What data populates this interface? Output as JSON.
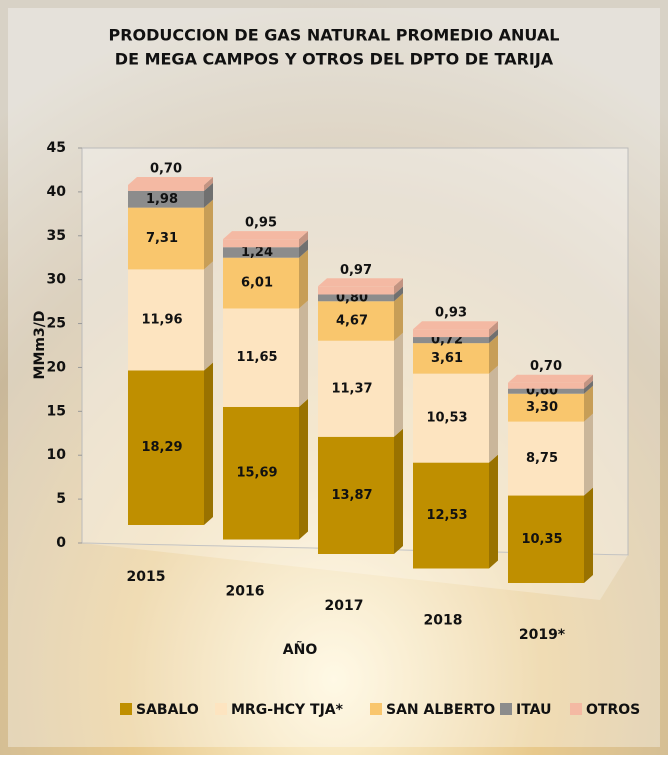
{
  "chart_data": {
    "type": "bar3d-stacked",
    "title": [
      "PRODUCCION DE GAS NATURAL PROMEDIO ANUAL",
      "DE MEGA CAMPOS Y OTROS DEL DPTO DE TARIJA"
    ],
    "y_label": "MMm3/D",
    "x_label": "AÑO",
    "categories": [
      "2015",
      "2016",
      "2017",
      "2018",
      "2019*"
    ],
    "series": [
      {
        "name": "SABALO",
        "color": "#bf8f00",
        "values": [
          18.29,
          15.69,
          13.87,
          12.53,
          10.35
        ],
        "value_labels": [
          "18,29",
          "15,69",
          "13,87",
          "12,53",
          "10,35"
        ]
      },
      {
        "name": "MRG-HCY TJA*",
        "color": "#fde4c0",
        "values": [
          11.96,
          11.65,
          11.37,
          10.53,
          8.75
        ],
        "value_labels": [
          "11,96",
          "11,65",
          "11,37",
          "10,53",
          "8,75"
        ]
      },
      {
        "name": "SAN ALBERTO",
        "color": "#f9c66d",
        "values": [
          7.31,
          6.01,
          4.67,
          3.61,
          3.3
        ],
        "value_labels": [
          "7,31",
          "6,01",
          "4,67",
          "3,61",
          "3,30"
        ]
      },
      {
        "name": "ITAU",
        "color": "#8c8c8c",
        "values": [
          1.98,
          1.24,
          0.8,
          0.72,
          0.6
        ],
        "value_labels": [
          "1,98",
          "1,24",
          "0,80",
          "0,72",
          "0,60"
        ]
      },
      {
        "name": "OTROS",
        "color": "#f4b9a3",
        "values": [
          0.7,
          0.95,
          0.97,
          0.93,
          0.7
        ],
        "value_labels": [
          "0,70",
          "0,95",
          "0,97",
          "0,93",
          "0,70"
        ]
      }
    ],
    "ylim": [
      0,
      45
    ],
    "yticks": [
      0,
      5,
      10,
      15,
      20,
      25,
      30,
      35,
      40,
      45
    ],
    "legend": "bottom"
  }
}
